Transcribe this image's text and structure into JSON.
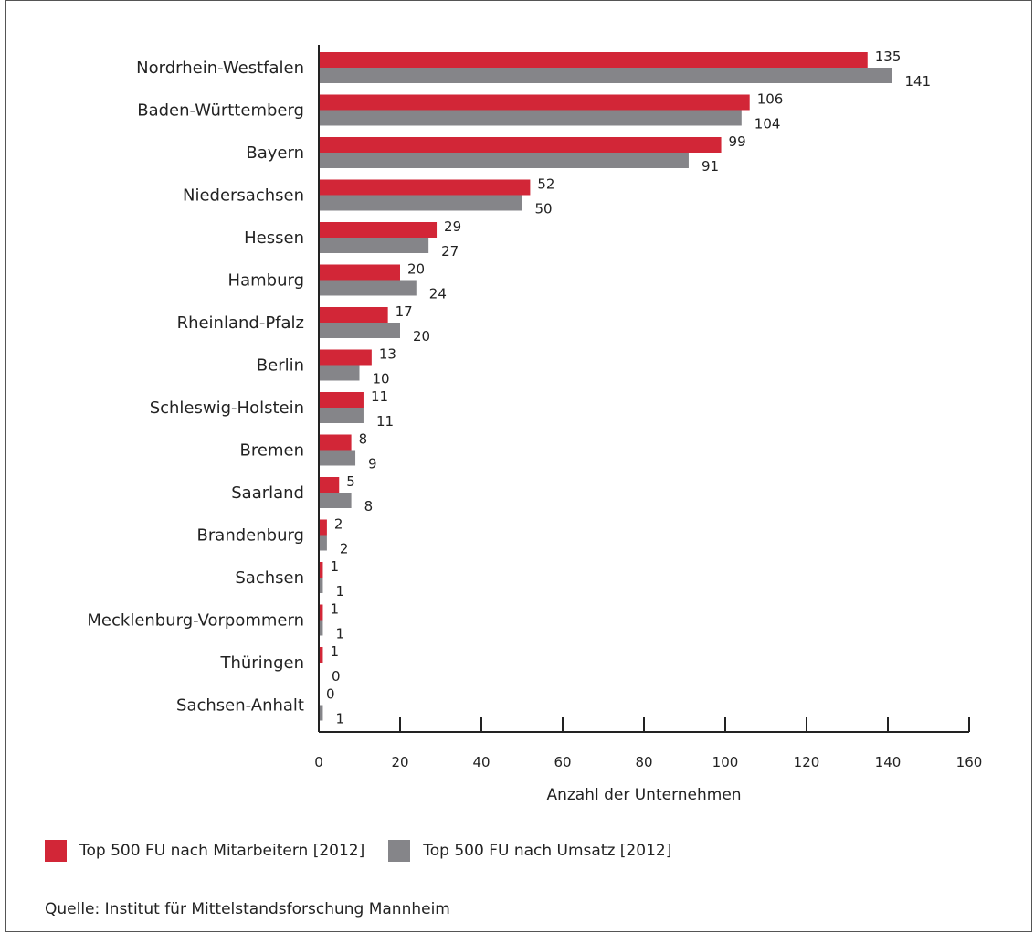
{
  "chart_data": {
    "type": "bar",
    "orientation": "horizontal",
    "categories": [
      "Nordrhein-Westfalen",
      "Baden-Württemberg",
      "Bayern",
      "Niedersachsen",
      "Hessen",
      "Hamburg",
      "Rheinland-Pfalz",
      "Berlin",
      "Schleswig-Holstein",
      "Bremen",
      "Saarland",
      "Brandenburg",
      "Sachsen",
      "Mecklenburg-Vorpommern",
      "Thüringen",
      "Sachsen-Anhalt"
    ],
    "series": [
      {
        "name": "Top 500 FU nach Mitarbeitern [2012]",
        "color": "#d22637",
        "values": [
          135,
          106,
          99,
          52,
          29,
          20,
          17,
          13,
          11,
          8,
          5,
          2,
          1,
          1,
          1,
          0
        ]
      },
      {
        "name": "Top 500 FU nach Umsatz [2012]",
        "color": "#858589",
        "values": [
          141,
          104,
          91,
          50,
          27,
          24,
          20,
          10,
          11,
          9,
          8,
          2,
          1,
          1,
          0,
          1
        ]
      }
    ],
    "xlabel": "Anzahl der Unternehmen",
    "xlim": [
      0,
      160
    ],
    "xticks": [
      0,
      20,
      40,
      60,
      80,
      100,
      120,
      140,
      160
    ],
    "grid": false,
    "legend_position": "bottom-left"
  },
  "legend": {
    "item1": "Top 500 FU nach Mitarbeitern [2012]",
    "item2": "Top 500 FU nach Umsatz [2012]"
  },
  "source": "Quelle: Institut für Mittelstandsforschung Mannheim"
}
